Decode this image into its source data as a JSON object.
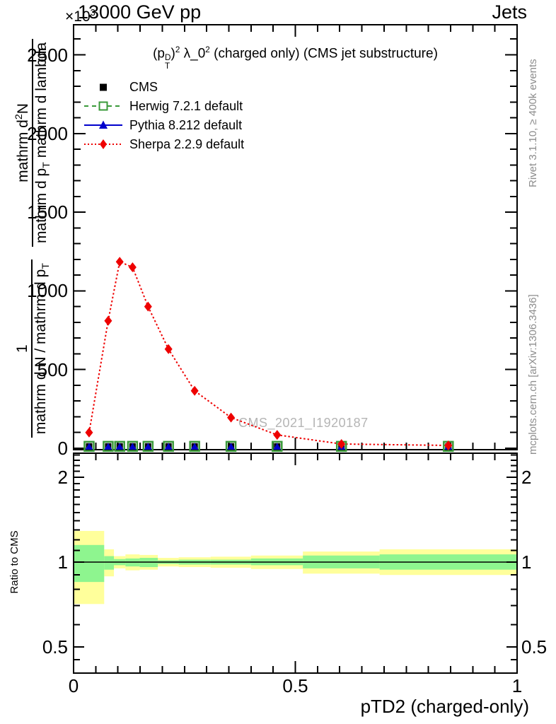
{
  "header": {
    "scale_base": "×10",
    "scale_exp": "3",
    "energy_title": "13000 GeV pp",
    "region_title": "Jets"
  },
  "main_title": {
    "open": "(p",
    "p_sup": "D",
    "p_sub": "T",
    "close_paren": ")",
    "paren_exp": "2",
    "lambda": " λ_0",
    "lambda_exp": "2",
    "suffix": " (charged only) (CMS jet substructure)"
  },
  "legend": {
    "items": [
      {
        "label": "CMS",
        "marker": "black-filled-square",
        "color": "#000000",
        "line": "none"
      },
      {
        "label": "Herwig 7.2.1 default",
        "marker": "green-open-square",
        "color": "#3a9a3a",
        "line": "dashed"
      },
      {
        "label": "Pythia 8.212 default",
        "marker": "blue-filled-triangle",
        "color": "#0000cc",
        "line": "solid"
      },
      {
        "label": "Sherpa 2.2.9 default",
        "marker": "red-filled-diamond",
        "color": "#ee0000",
        "line": "dotted"
      }
    ]
  },
  "y_axis_label": {
    "frac1_num": "1",
    "frac1_den_main": "mathrm d N / mathrm d p",
    "frac1_den_sub": "T",
    "frac2_num_pre": "mathrm d",
    "frac2_num_sup": "2",
    "frac2_num_post": "N",
    "frac2_den_pre": "mathrm d p",
    "frac2_den_sub": "T",
    "frac2_den_post": " mathrm d lambda"
  },
  "ratio_axis_label": "Ratio to CMS",
  "x_axis_label": "pTD2 (charged-only)",
  "side_notes": {
    "rivet": "Rivet 3.1.10, ≥ 400k events",
    "mcplots": "mcplots.cern.ch [arXiv:1306.3436]"
  },
  "watermark": "CMS_2021_I1920187",
  "chart_data": [
    {
      "type": "line",
      "title": "(p_T^D)^2 λ_0^2 (charged only) (CMS jet substructure)",
      "xlabel": "pTD2 (charged-only)",
      "ylabel": "1/(dN/dp_T) d^2N/(dp_T dlambda)",
      "y_unit_scale": "×10^3",
      "xlim": [
        0,
        1
      ],
      "ylim": [
        0,
        2690
      ],
      "xticks": [
        0,
        0.5,
        1
      ],
      "xtick_labels": [
        "0",
        "0.5",
        "1"
      ],
      "x_minor_step": 0.05,
      "yticks": [
        0,
        500,
        1000,
        1500,
        2000,
        2500
      ],
      "ytick_labels": [
        "0",
        "500",
        "1000",
        "1500",
        "2000",
        "2500"
      ],
      "y_minor_step": 100,
      "grid": false,
      "legend_position": "top-left",
      "x": [
        0.035,
        0.078,
        0.104,
        0.133,
        0.168,
        0.214,
        0.273,
        0.355,
        0.459,
        0.604,
        0.845
      ],
      "series": [
        {
          "name": "CMS",
          "color": "#000000",
          "marker": "filled-square",
          "linestyle": "none",
          "values": [
            12,
            12,
            12,
            12,
            12,
            12,
            12,
            12,
            12,
            12,
            12
          ]
        },
        {
          "name": "Herwig 7.2.1 default",
          "color": "#3a9a3a",
          "marker": "open-square",
          "linestyle": "dashed",
          "values": [
            12,
            12,
            12,
            12,
            12,
            12,
            12,
            12,
            12,
            12,
            12
          ]
        },
        {
          "name": "Pythia 8.212 default",
          "color": "#0000cc",
          "marker": "filled-triangle",
          "linestyle": "solid",
          "values": [
            12,
            12,
            12,
            12,
            12,
            12,
            12,
            12,
            12,
            12,
            12
          ]
        },
        {
          "name": "Sherpa 2.2.9 default",
          "color": "#ee0000",
          "marker": "filled-diamond",
          "linestyle": "dotted",
          "values": [
            100,
            810,
            1185,
            1150,
            900,
            630,
            365,
            195,
            85,
            27,
            18
          ]
        }
      ]
    },
    {
      "type": "ratio-band",
      "ylabel": "Ratio to CMS",
      "yscale": "log2",
      "ylim": [
        0.4,
        2.45
      ],
      "yticks": [
        0.5,
        1,
        2
      ],
      "ytick_labels": [
        "0.5",
        "1",
        "2"
      ],
      "y_minor_ticks": [
        0.45,
        0.6,
        0.7,
        0.8,
        0.9,
        1.1,
        1.2,
        1.3,
        1.4,
        1.5,
        1.6,
        1.7,
        1.8,
        1.9,
        2.1,
        2.2,
        2.3,
        2.4
      ],
      "bin_edges": [
        0,
        0.069,
        0.091,
        0.117,
        0.149,
        0.19,
        0.237,
        0.309,
        0.4,
        0.517,
        0.69,
        1.0
      ],
      "bands": {
        "yellow": {
          "color": "#ffff9b",
          "lo": [
            0.71,
            0.89,
            0.95,
            0.935,
            0.94,
            0.965,
            0.96,
            0.955,
            0.945,
            0.91,
            0.9
          ],
          "hi": [
            1.29,
            1.11,
            1.05,
            1.065,
            1.06,
            1.035,
            1.04,
            1.045,
            1.055,
            1.09,
            1.11
          ]
        },
        "green": {
          "color": "#8ef58f",
          "lo": [
            0.85,
            0.94,
            0.975,
            0.965,
            0.96,
            0.985,
            0.98,
            0.98,
            0.975,
            0.95,
            0.94
          ],
          "hi": [
            1.15,
            1.05,
            1.025,
            1.03,
            1.035,
            1.015,
            1.02,
            1.02,
            1.03,
            1.055,
            1.065
          ]
        }
      },
      "reference_line": 1
    }
  ]
}
